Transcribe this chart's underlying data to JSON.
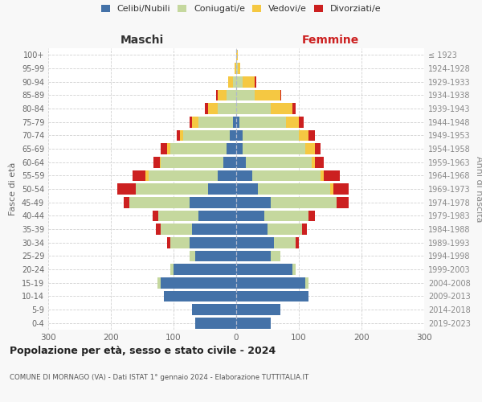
{
  "age_groups": [
    "0-4",
    "5-9",
    "10-14",
    "15-19",
    "20-24",
    "25-29",
    "30-34",
    "35-39",
    "40-44",
    "45-49",
    "50-54",
    "55-59",
    "60-64",
    "65-69",
    "70-74",
    "75-79",
    "80-84",
    "85-89",
    "90-94",
    "95-99",
    "100+"
  ],
  "birth_years": [
    "2019-2023",
    "2014-2018",
    "2009-2013",
    "2004-2008",
    "1999-2003",
    "1994-1998",
    "1989-1993",
    "1984-1988",
    "1979-1983",
    "1974-1978",
    "1969-1973",
    "1964-1968",
    "1959-1963",
    "1954-1958",
    "1949-1953",
    "1944-1948",
    "1939-1943",
    "1934-1938",
    "1929-1933",
    "1924-1928",
    "≤ 1923"
  ],
  "males": {
    "celibi": [
      65,
      70,
      115,
      120,
      100,
      65,
      75,
      70,
      60,
      75,
      45,
      30,
      20,
      15,
      10,
      5,
      0,
      0,
      0,
      0,
      0
    ],
    "coniugati": [
      0,
      0,
      0,
      5,
      5,
      10,
      30,
      50,
      65,
      95,
      115,
      110,
      100,
      90,
      75,
      55,
      30,
      15,
      5,
      0,
      0
    ],
    "vedovi": [
      0,
      0,
      0,
      0,
      0,
      0,
      0,
      0,
      0,
      0,
      0,
      5,
      2,
      5,
      5,
      10,
      15,
      15,
      8,
      2,
      0
    ],
    "divorziati": [
      0,
      0,
      0,
      0,
      0,
      0,
      5,
      8,
      8,
      10,
      30,
      20,
      10,
      10,
      5,
      5,
      5,
      2,
      0,
      0,
      0
    ]
  },
  "females": {
    "nubili": [
      55,
      70,
      115,
      110,
      90,
      55,
      60,
      50,
      45,
      55,
      35,
      25,
      15,
      10,
      10,
      5,
      0,
      0,
      0,
      0,
      0
    ],
    "coniugate": [
      0,
      0,
      0,
      5,
      5,
      15,
      35,
      55,
      70,
      105,
      115,
      110,
      105,
      100,
      90,
      75,
      55,
      30,
      10,
      2,
      0
    ],
    "vedove": [
      0,
      0,
      0,
      0,
      0,
      0,
      0,
      0,
      0,
      0,
      5,
      5,
      5,
      15,
      15,
      20,
      35,
      40,
      20,
      5,
      2
    ],
    "divorziate": [
      0,
      0,
      0,
      0,
      0,
      0,
      5,
      8,
      10,
      20,
      25,
      25,
      15,
      10,
      10,
      8,
      5,
      2,
      2,
      0,
      0
    ]
  },
  "colors": {
    "celibi": "#4472a8",
    "coniugati": "#c5d89e",
    "vedovi": "#f5c842",
    "divorziati": "#cc2020"
  },
  "legend_labels": [
    "Celibi/Nubili",
    "Coniugati/e",
    "Vedovi/e",
    "Divorziati/e"
  ],
  "title": "Popolazione per età, sesso e stato civile - 2024",
  "subtitle": "COMUNE DI MORNAGO (VA) - Dati ISTAT 1° gennaio 2024 - Elaborazione TUTTITALIA.IT",
  "xlabel_left": "Maschi",
  "xlabel_right": "Femmine",
  "ylabel_left": "Fasce di età",
  "ylabel_right": "Anni di nascita",
  "xlim": 300,
  "bg_color": "#f8f8f8",
  "plot_bg": "#ffffff",
  "grid_color": "#cccccc"
}
